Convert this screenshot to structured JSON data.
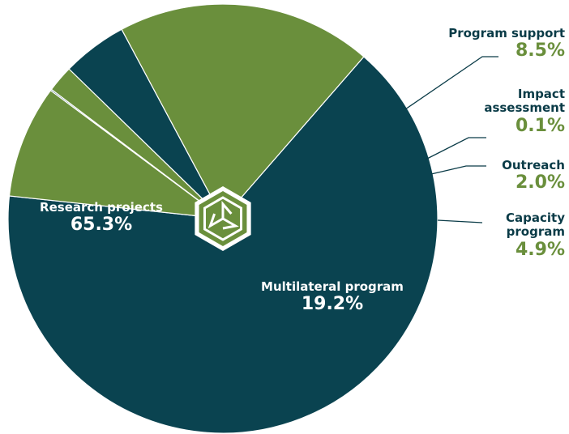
{
  "chart_data": {
    "type": "pie",
    "categories": [
      "Research projects",
      "Program support",
      "Impact assessment",
      "Outreach",
      "Capacity program",
      "Multilateral program"
    ],
    "values": [
      65.3,
      8.5,
      0.1,
      2.0,
      4.9,
      19.2
    ],
    "value_labels": [
      "65.3%",
      "8.5%",
      "0.1%",
      "2.0%",
      "4.9%",
      "19.2%"
    ],
    "colors": [
      "#0a4350",
      "#6a8f3c",
      "#0a4350",
      "#6a8f3c",
      "#0a4350",
      "#6a8f3c"
    ]
  }
}
